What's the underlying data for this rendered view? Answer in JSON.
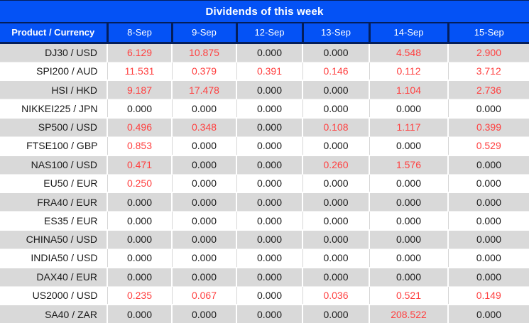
{
  "title": "Dividends of this week",
  "colors": {
    "header_background": "#0452F5",
    "header_divider": "#041E5A",
    "header_text": "#FFFFFF",
    "row_alt_background": "#D9D9D9",
    "value_red": "#FF4040",
    "value_black": "#1A1A1A"
  },
  "table": {
    "product_header": "Product / Currency",
    "date_headers": [
      "8-Sep",
      "9-Sep",
      "12-Sep",
      "13-Sep",
      "14-Sep",
      "15-Sep"
    ],
    "rows": [
      {
        "product": "DJ30 / USD",
        "values": [
          {
            "v": "6.129",
            "r": true
          },
          {
            "v": "10.875",
            "r": true
          },
          {
            "v": "0.000",
            "r": false
          },
          {
            "v": "0.000",
            "r": false
          },
          {
            "v": "4.548",
            "r": true
          },
          {
            "v": "2.900",
            "r": true
          }
        ]
      },
      {
        "product": "SPI200 / AUD",
        "values": [
          {
            "v": "11.531",
            "r": true
          },
          {
            "v": "0.379",
            "r": true
          },
          {
            "v": "0.391",
            "r": true
          },
          {
            "v": "0.146",
            "r": true
          },
          {
            "v": "0.112",
            "r": true
          },
          {
            "v": "3.712",
            "r": true
          }
        ]
      },
      {
        "product": "HSI / HKD",
        "values": [
          {
            "v": "9.187",
            "r": true
          },
          {
            "v": "17.478",
            "r": true
          },
          {
            "v": "0.000",
            "r": false
          },
          {
            "v": "0.000",
            "r": false
          },
          {
            "v": "1.104",
            "r": true
          },
          {
            "v": "2.736",
            "r": true
          }
        ]
      },
      {
        "product": "NIKKEI225 / JPN",
        "values": [
          {
            "v": "0.000",
            "r": false
          },
          {
            "v": "0.000",
            "r": false
          },
          {
            "v": "0.000",
            "r": false
          },
          {
            "v": "0.000",
            "r": false
          },
          {
            "v": "0.000",
            "r": false
          },
          {
            "v": "0.000",
            "r": false
          }
        ]
      },
      {
        "product": "SP500 / USD",
        "values": [
          {
            "v": "0.496",
            "r": true
          },
          {
            "v": "0.348",
            "r": true
          },
          {
            "v": "0.000",
            "r": false
          },
          {
            "v": "0.108",
            "r": true
          },
          {
            "v": "1.117",
            "r": true
          },
          {
            "v": "0.399",
            "r": true
          }
        ]
      },
      {
        "product": "FTSE100 / GBP",
        "values": [
          {
            "v": "0.853",
            "r": true
          },
          {
            "v": "0.000",
            "r": false
          },
          {
            "v": "0.000",
            "r": false
          },
          {
            "v": "0.000",
            "r": false
          },
          {
            "v": "0.000",
            "r": false
          },
          {
            "v": "0.529",
            "r": true
          }
        ]
      },
      {
        "product": "NAS100 / USD",
        "values": [
          {
            "v": "0.471",
            "r": true
          },
          {
            "v": "0.000",
            "r": false
          },
          {
            "v": "0.000",
            "r": false
          },
          {
            "v": "0.260",
            "r": true
          },
          {
            "v": "1.576",
            "r": true
          },
          {
            "v": "0.000",
            "r": false
          }
        ]
      },
      {
        "product": "EU50 / EUR",
        "values": [
          {
            "v": "0.250",
            "r": true
          },
          {
            "v": "0.000",
            "r": false
          },
          {
            "v": "0.000",
            "r": false
          },
          {
            "v": "0.000",
            "r": false
          },
          {
            "v": "0.000",
            "r": false
          },
          {
            "v": "0.000",
            "r": false
          }
        ]
      },
      {
        "product": "FRA40 / EUR",
        "values": [
          {
            "v": "0.000",
            "r": false
          },
          {
            "v": "0.000",
            "r": false
          },
          {
            "v": "0.000",
            "r": false
          },
          {
            "v": "0.000",
            "r": false
          },
          {
            "v": "0.000",
            "r": false
          },
          {
            "v": "0.000",
            "r": false
          }
        ]
      },
      {
        "product": "ES35 / EUR",
        "values": [
          {
            "v": "0.000",
            "r": false
          },
          {
            "v": "0.000",
            "r": false
          },
          {
            "v": "0.000",
            "r": false
          },
          {
            "v": "0.000",
            "r": false
          },
          {
            "v": "0.000",
            "r": false
          },
          {
            "v": "0.000",
            "r": false
          }
        ]
      },
      {
        "product": "CHINA50 / USD",
        "values": [
          {
            "v": "0.000",
            "r": false
          },
          {
            "v": "0.000",
            "r": false
          },
          {
            "v": "0.000",
            "r": false
          },
          {
            "v": "0.000",
            "r": false
          },
          {
            "v": "0.000",
            "r": false
          },
          {
            "v": "0.000",
            "r": false
          }
        ]
      },
      {
        "product": "INDIA50 / USD",
        "values": [
          {
            "v": "0.000",
            "r": false
          },
          {
            "v": "0.000",
            "r": false
          },
          {
            "v": "0.000",
            "r": false
          },
          {
            "v": "0.000",
            "r": false
          },
          {
            "v": "0.000",
            "r": false
          },
          {
            "v": "0.000",
            "r": false
          }
        ]
      },
      {
        "product": "DAX40 / EUR",
        "values": [
          {
            "v": "0.000",
            "r": false
          },
          {
            "v": "0.000",
            "r": false
          },
          {
            "v": "0.000",
            "r": false
          },
          {
            "v": "0.000",
            "r": false
          },
          {
            "v": "0.000",
            "r": false
          },
          {
            "v": "0.000",
            "r": false
          }
        ]
      },
      {
        "product": "US2000 / USD",
        "values": [
          {
            "v": "0.235",
            "r": true
          },
          {
            "v": "0.067",
            "r": true
          },
          {
            "v": "0.000",
            "r": false
          },
          {
            "v": "0.036",
            "r": true
          },
          {
            "v": "0.521",
            "r": true
          },
          {
            "v": "0.149",
            "r": true
          }
        ]
      },
      {
        "product": "SA40 / ZAR",
        "values": [
          {
            "v": "0.000",
            "r": false
          },
          {
            "v": "0.000",
            "r": false
          },
          {
            "v": "0.000",
            "r": false
          },
          {
            "v": "0.000",
            "r": false
          },
          {
            "v": "208.522",
            "r": true
          },
          {
            "v": "0.000",
            "r": false
          }
        ]
      }
    ]
  }
}
